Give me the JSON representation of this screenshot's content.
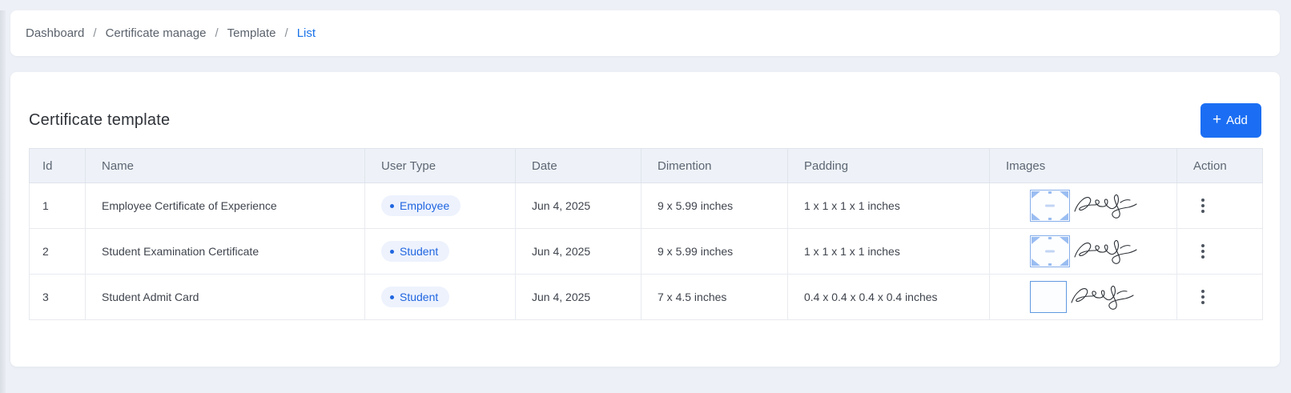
{
  "breadcrumb": {
    "separator": "/",
    "items": [
      {
        "label": "Dashboard",
        "active": false
      },
      {
        "label": "Certificate manage",
        "active": false
      },
      {
        "label": "Template",
        "active": false
      },
      {
        "label": "List",
        "active": true
      }
    ]
  },
  "page": {
    "title": "Certificate template",
    "add_button": {
      "label": "Add",
      "icon": "plus-icon"
    }
  },
  "table": {
    "columns": [
      "Id",
      "Name",
      "User Type",
      "Date",
      "Dimention",
      "Padding",
      "Images",
      "Action"
    ],
    "rows": [
      {
        "id": "1",
        "name": "Employee Certificate of Experience",
        "user_type": "Employee",
        "date": "Jun 4, 2025",
        "dimention": "9 x 5.99 inches",
        "padding": "1 x 1 x 1 x 1 inches",
        "images": [
          "certificate-template-thumbnail",
          "signature-image"
        ],
        "thumb_style": "decorated",
        "action_icon": "kebab-menu-icon"
      },
      {
        "id": "2",
        "name": "Student Examination Certificate",
        "user_type": "Student",
        "date": "Jun 4, 2025",
        "dimention": "9 x 5.99 inches",
        "padding": "1 x 1 x 1 x 1 inches",
        "images": [
          "certificate-template-thumbnail",
          "signature-image"
        ],
        "thumb_style": "decorated",
        "action_icon": "kebab-menu-icon"
      },
      {
        "id": "3",
        "name": "Student Admit Card",
        "user_type": "Student",
        "date": "Jun 4, 2025",
        "dimention": "7 x 4.5 inches",
        "padding": "0.4 x 0.4 x 0.4 x 0.4 inches",
        "images": [
          "blank-template-thumbnail",
          "signature-image"
        ],
        "thumb_style": "plain",
        "action_icon": "kebab-menu-icon"
      }
    ]
  },
  "colors": {
    "accent_blue": "#1b6ef3",
    "link_blue": "#1a73e8",
    "badge_text": "#2166e0",
    "badge_bg": "#edf2fd",
    "header_bg": "#eef2f8",
    "page_bg": "#edf0f6"
  }
}
